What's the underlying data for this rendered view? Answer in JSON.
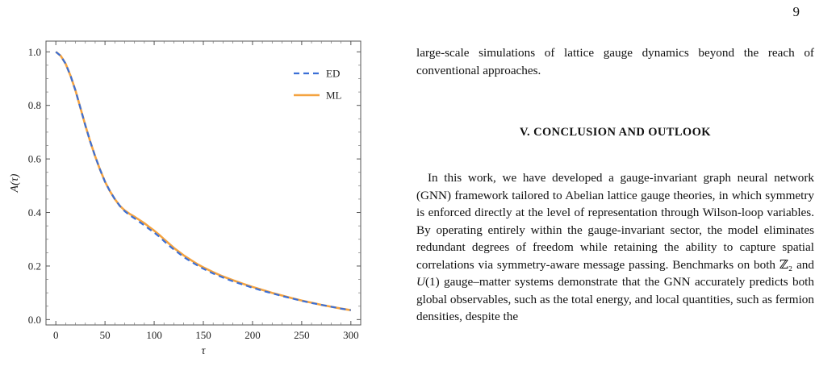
{
  "page": {
    "number": "9"
  },
  "figure": {
    "ylabel": "A(τ)",
    "xlabel": "τ",
    "legend": [
      "ED",
      "ML"
    ]
  },
  "chart_data": {
    "type": "line",
    "title": "",
    "xlabel": "τ",
    "ylabel": "A(τ)",
    "xlim": [
      -10,
      310
    ],
    "ylim": [
      -0.02,
      1.04
    ],
    "xticks": [
      0,
      50,
      100,
      150,
      200,
      250,
      300
    ],
    "yticks": [
      0.0,
      0.2,
      0.4,
      0.6,
      0.8,
      1.0
    ],
    "ytick_labels": [
      "0.0",
      "0.2",
      "0.4",
      "0.6",
      "0.8",
      "1.0"
    ],
    "grid": false,
    "legend_position": "top-right",
    "x": [
      0,
      5,
      10,
      15,
      20,
      25,
      30,
      35,
      40,
      45,
      50,
      55,
      60,
      65,
      70,
      75,
      80,
      85,
      90,
      95,
      100,
      105,
      110,
      115,
      120,
      125,
      130,
      135,
      140,
      145,
      150,
      160,
      170,
      180,
      190,
      200,
      210,
      220,
      230,
      240,
      250,
      260,
      270,
      280,
      290,
      300
    ],
    "series": [
      {
        "name": "ED",
        "color": "#3b6fd6",
        "style": "dashed",
        "values": [
          1.0,
          0.985,
          0.955,
          0.91,
          0.855,
          0.79,
          0.725,
          0.665,
          0.61,
          0.56,
          0.515,
          0.48,
          0.45,
          0.425,
          0.405,
          0.39,
          0.378,
          0.365,
          0.352,
          0.338,
          0.325,
          0.31,
          0.293,
          0.277,
          0.262,
          0.248,
          0.234,
          0.222,
          0.211,
          0.2,
          0.19,
          0.172,
          0.157,
          0.143,
          0.131,
          0.119,
          0.108,
          0.098,
          0.088,
          0.079,
          0.07,
          0.062,
          0.055,
          0.048,
          0.041,
          0.035
        ]
      },
      {
        "name": "ML",
        "color": "#f4a340",
        "style": "solid",
        "values": [
          1.0,
          0.985,
          0.955,
          0.91,
          0.855,
          0.79,
          0.725,
          0.665,
          0.61,
          0.56,
          0.515,
          0.48,
          0.45,
          0.425,
          0.408,
          0.395,
          0.384,
          0.372,
          0.36,
          0.346,
          0.332,
          0.317,
          0.3,
          0.284,
          0.268,
          0.254,
          0.24,
          0.228,
          0.216,
          0.205,
          0.195,
          0.177,
          0.161,
          0.147,
          0.134,
          0.122,
          0.111,
          0.1,
          0.09,
          0.08,
          0.071,
          0.063,
          0.055,
          0.048,
          0.041,
          0.035
        ]
      }
    ]
  },
  "text": {
    "intro": "large-scale simulations of lattice gauge dynamics beyond the reach of conventional approaches.",
    "section_heading": "V.   CONCLUSION AND OUTLOOK",
    "body_part1": "In this work, we have developed a gauge-invariant graph neural network (GNN) framework tailored to Abelian lattice gauge theories, in which symmetry is enforced directly at the level of representation through Wilson-loop variables. By operating entirely within the gauge-invariant sector, the model eliminates redundant degrees of freedom while retaining the ability to capture spatial correlations via symmetry-aware message pass­ing. Benchmarks on both ",
    "z2": "ℤ₂",
    "body_and": " and ",
    "u1": "U",
    "u1_arg": "(1)",
    "body_part2": " gauge–matter systems demonstrate that the GNN accurately predicts both global observables, such as the total energy, and local quantities, such as fermion densities, despite the"
  }
}
